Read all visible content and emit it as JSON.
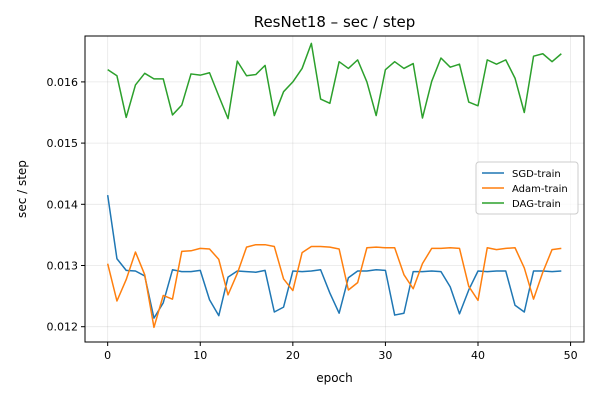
{
  "chart_data": {
    "type": "line",
    "title": "ResNet18 – sec / step",
    "xlabel": "epoch",
    "ylabel": "sec / step",
    "xlim": [
      -2.45,
      51.45
    ],
    "ylim": [
      0.01175,
      0.01675
    ],
    "xticks": [
      0,
      10,
      20,
      30,
      40,
      50
    ],
    "xtick_labels": [
      "0",
      "10",
      "20",
      "30",
      "40",
      "50"
    ],
    "yticks": [
      0.012,
      0.013,
      0.014,
      0.015,
      0.016
    ],
    "ytick_labels": [
      "0.012",
      "0.013",
      "0.014",
      "0.015",
      "0.016"
    ],
    "grid": true,
    "legend_position": "center-right",
    "x": [
      0,
      1,
      2,
      3,
      4,
      5,
      6,
      7,
      8,
      9,
      10,
      11,
      12,
      13,
      14,
      15,
      16,
      17,
      18,
      19,
      20,
      21,
      22,
      23,
      24,
      25,
      26,
      27,
      28,
      29,
      30,
      31,
      32,
      33,
      34,
      35,
      36,
      37,
      38,
      39,
      40,
      41,
      42,
      43,
      44,
      45,
      46,
      47,
      48,
      49
    ],
    "series": [
      {
        "name": "SGD-train",
        "color": "#1f77b4",
        "values": [
          0.01415,
          0.01311,
          0.01292,
          0.01291,
          0.01283,
          0.01214,
          0.01239,
          0.01293,
          0.0129,
          0.0129,
          0.01292,
          0.01244,
          0.01218,
          0.01281,
          0.01291,
          0.0129,
          0.01289,
          0.01292,
          0.01224,
          0.01232,
          0.01291,
          0.0129,
          0.01291,
          0.01293,
          0.01255,
          0.01222,
          0.0128,
          0.01291,
          0.01291,
          0.01293,
          0.01292,
          0.01219,
          0.01222,
          0.0129,
          0.0129,
          0.01291,
          0.0129,
          0.01265,
          0.01221,
          0.0126,
          0.01291,
          0.0129,
          0.01291,
          0.01291,
          0.01235,
          0.01224,
          0.01291,
          0.01291,
          0.0129,
          0.01291
        ]
      },
      {
        "name": "Adam-train",
        "color": "#ff7f0e",
        "values": [
          0.01303,
          0.01242,
          0.01277,
          0.01322,
          0.01285,
          0.01199,
          0.01251,
          0.01245,
          0.01323,
          0.01324,
          0.01328,
          0.01327,
          0.0131,
          0.01252,
          0.01287,
          0.0133,
          0.01334,
          0.01334,
          0.01331,
          0.01278,
          0.01259,
          0.01321,
          0.01331,
          0.01331,
          0.0133,
          0.01327,
          0.0126,
          0.01272,
          0.01329,
          0.0133,
          0.01329,
          0.01329,
          0.01285,
          0.01262,
          0.01303,
          0.01328,
          0.01328,
          0.01329,
          0.01328,
          0.01266,
          0.01243,
          0.01329,
          0.01326,
          0.01328,
          0.01329,
          0.01296,
          0.01245,
          0.01289,
          0.01326,
          0.01328
        ]
      },
      {
        "name": "DAG-train",
        "color": "#2ca02c",
        "values": [
          0.0162,
          0.0161,
          0.01542,
          0.01595,
          0.01614,
          0.01605,
          0.01605,
          0.01546,
          0.01562,
          0.01613,
          0.01611,
          0.01615,
          0.01577,
          0.0154,
          0.01634,
          0.0161,
          0.01612,
          0.01627,
          0.01545,
          0.01584,
          0.016,
          0.01622,
          0.01663,
          0.01572,
          0.01565,
          0.01633,
          0.01622,
          0.01636,
          0.016,
          0.01545,
          0.0162,
          0.01633,
          0.01622,
          0.0163,
          0.01541,
          0.01601,
          0.01639,
          0.01624,
          0.01629,
          0.01567,
          0.01561,
          0.01636,
          0.01629,
          0.01636,
          0.01606,
          0.0155,
          0.01642,
          0.01646,
          0.01633,
          0.01646
        ]
      }
    ]
  }
}
